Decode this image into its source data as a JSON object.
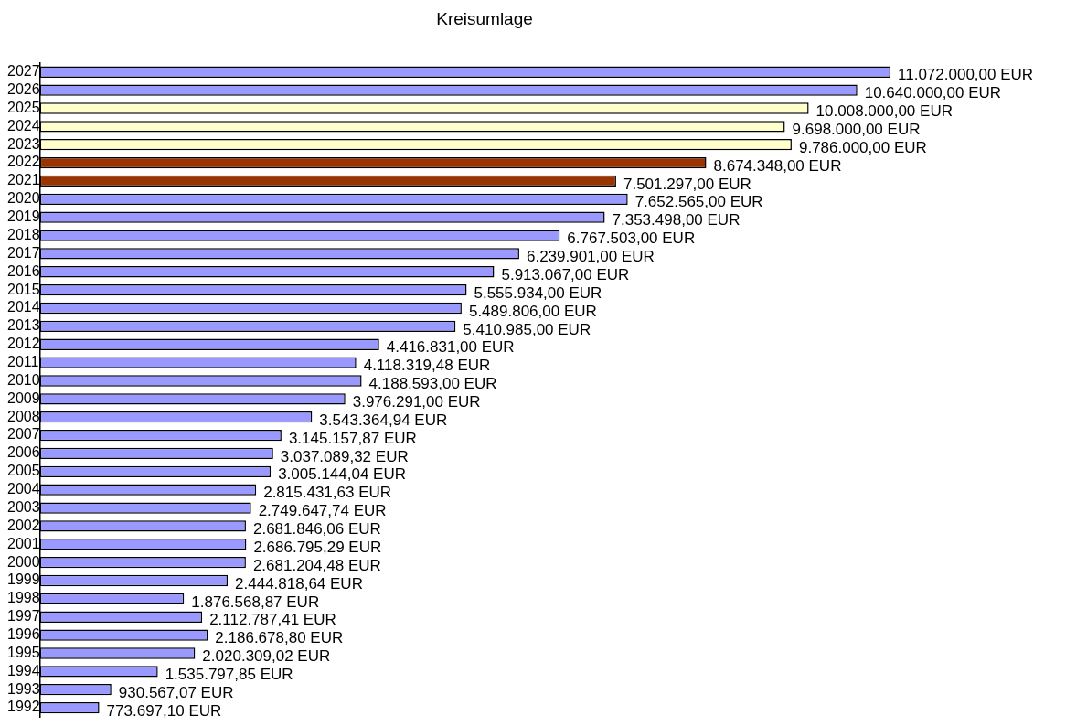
{
  "chart_data": {
    "type": "bar",
    "orientation": "horizontal",
    "title": "Kreisumlage",
    "categories": [
      "2027",
      "2026",
      "2025",
      "2024",
      "2023",
      "2022",
      "2021",
      "2020",
      "2019",
      "2018",
      "2017",
      "2016",
      "2015",
      "2014",
      "2013",
      "2012",
      "2011",
      "2010",
      "2009",
      "2008",
      "2007",
      "2006",
      "2005",
      "2004",
      "2003",
      "2002",
      "2001",
      "2000",
      "1999",
      "1998",
      "1997",
      "1996",
      "1995",
      "1994",
      "1993",
      "1992"
    ],
    "values": [
      11072000,
      10640000,
      10008000,
      9698000,
      9786000,
      8674348,
      7501297,
      7652565,
      7353498,
      6767503,
      6239901,
      5913067,
      5555934,
      5489806,
      5410985,
      4416831,
      4118319.48,
      4188593,
      3976291,
      3543364.94,
      3145157.87,
      3037089.32,
      3005144.04,
      2815431.63,
      2749647.74,
      2681846.06,
      2686795.29,
      2681204.48,
      2444818.64,
      1876568.87,
      2112787.41,
      2186678.8,
      2020309.02,
      1535797.85,
      930567.07,
      773697.1
    ],
    "colors": [
      "#9999ff",
      "#9999ff",
      "#ffffcc",
      "#ffffcc",
      "#ffffcc",
      "#993300",
      "#993300",
      "#9999ff",
      "#9999ff",
      "#9999ff",
      "#9999ff",
      "#9999ff",
      "#9999ff",
      "#9999ff",
      "#9999ff",
      "#9999ff",
      "#9999ff",
      "#9999ff",
      "#9999ff",
      "#9999ff",
      "#9999ff",
      "#9999ff",
      "#9999ff",
      "#9999ff",
      "#9999ff",
      "#9999ff",
      "#9999ff",
      "#9999ff",
      "#9999ff",
      "#9999ff",
      "#9999ff",
      "#9999ff",
      "#9999ff",
      "#9999ff",
      "#9999ff",
      "#9999ff"
    ],
    "value_labels": [
      "11.072.000,00 EUR",
      "10.640.000,00 EUR",
      "10.008.000,00 EUR",
      "9.698.000,00 EUR",
      "9.786.000,00 EUR",
      "8.674.348,00 EUR",
      "7.501.297,00 EUR",
      "7.652.565,00 EUR",
      "7.353.498,00 EUR",
      "6.767.503,00 EUR",
      "6.239.901,00 EUR",
      "5.913.067,00 EUR",
      "5.555.934,00 EUR",
      "5.489.806,00 EUR",
      "5.410.985,00 EUR",
      "4.416.831,00 EUR",
      "4.118.319,48 EUR",
      "4.188.593,00 EUR",
      "3.976.291,00 EUR",
      "3.543.364,94 EUR",
      "3.145.157,87 EUR",
      "3.037.089,32 EUR",
      "3.005.144,04 EUR",
      "2.815.431,63 EUR",
      "2.749.647,74 EUR",
      "2.681.846,06 EUR",
      "2.686.795,29 EUR",
      "2.681.204,48 EUR",
      "2.444.818,64 EUR",
      "1.876.568,87 EUR",
      "2.112.787,41 EUR",
      "2.186.678,80 EUR",
      "2.020.309,02 EUR",
      "1.535.797,85 EUR",
      "930.567,07 EUR",
      "773.697,10 EUR"
    ],
    "tick_labels": "y",
    "legend": false
  }
}
